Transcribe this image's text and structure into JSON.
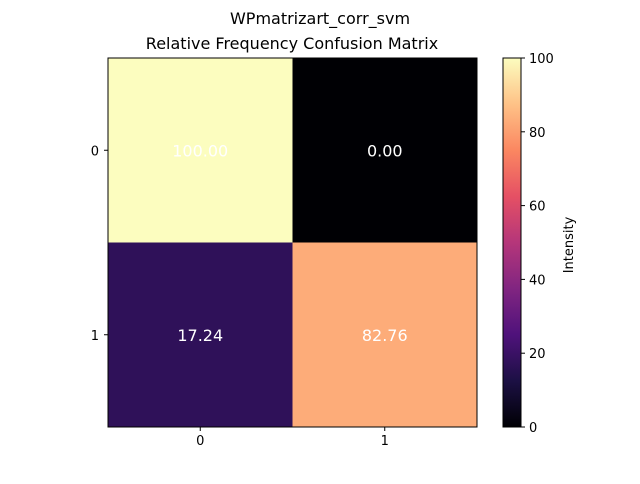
{
  "chart_data": {
    "type": "heatmap",
    "suptitle": "WPmatrizart_corr_svm",
    "title": "Relative Frequency Confusion Matrix",
    "xlabel": "",
    "ylabel": "",
    "x_categories": [
      "0",
      "1"
    ],
    "y_categories": [
      "0",
      "1"
    ],
    "values": [
      [
        100.0,
        0.0
      ],
      [
        17.24,
        82.76
      ]
    ],
    "value_format_decimals": 2,
    "colormap": "magma",
    "colorbar": {
      "label": "Intensity",
      "range": [
        0,
        100
      ],
      "ticks": [
        0,
        20,
        40,
        60,
        80,
        100
      ]
    },
    "grid": false
  }
}
